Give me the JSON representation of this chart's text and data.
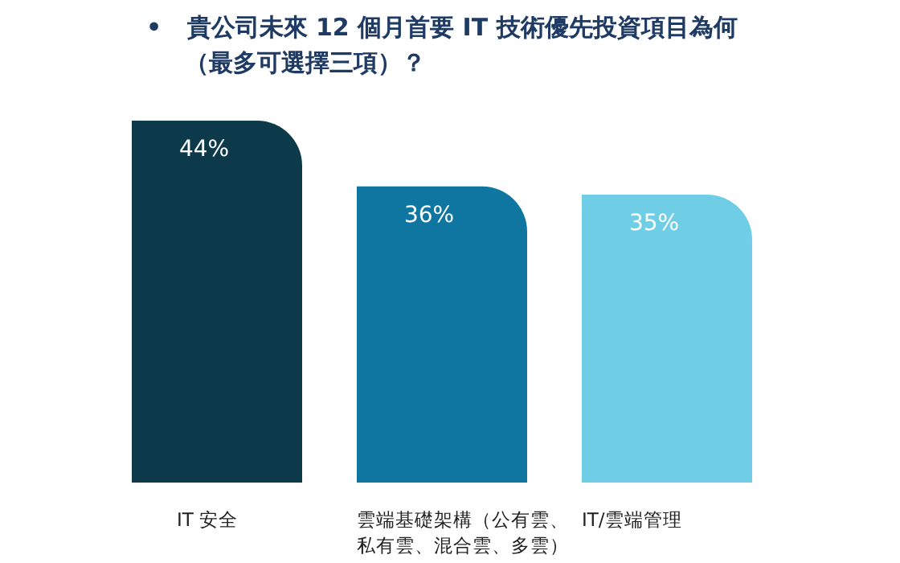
{
  "chart_data": {
    "type": "bar",
    "title": "•   貴公司未來 12 個月首要 IT 技術優先投資項目為何（最多可選擇三項）？",
    "categories": [
      "IT 安全",
      "雲端基礎架構（公有雲、私有雲、混合雲、多雲）",
      "IT/雲端管理"
    ],
    "values": [
      44,
      36,
      35
    ],
    "colors": [
      "#0d3a4b",
      "#0e76a0",
      "#6fcde6"
    ],
    "value_labels": [
      "44%",
      "36%",
      "35%"
    ]
  }
}
